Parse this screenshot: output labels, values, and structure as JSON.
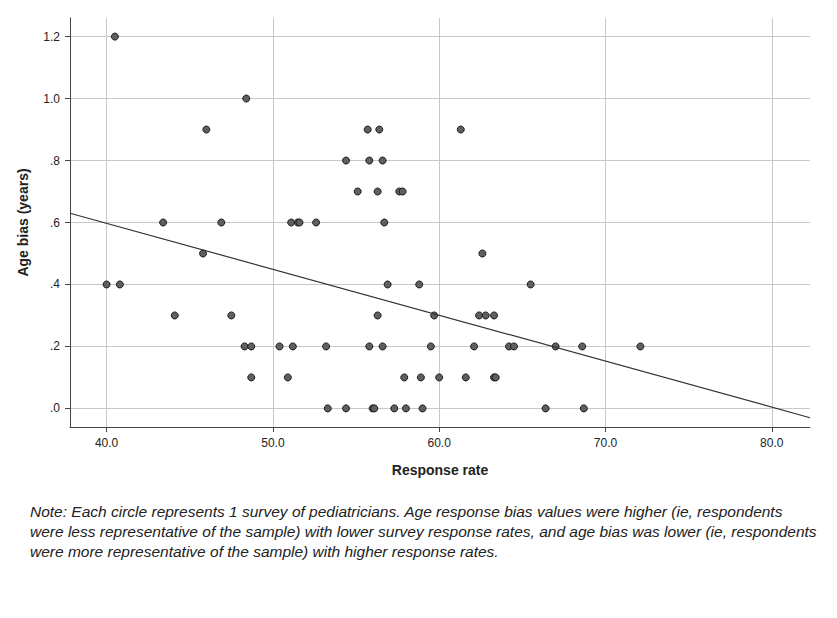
{
  "chart_data": {
    "type": "scatter",
    "x_label": "Response rate",
    "y_label": "Age bias (years)",
    "note": "Note: Each circle represents 1 survey of pediatricians. Age response bias values were higher (ie, respondents were less representative of the sample) with lower survey response rates, and age bias was lower (ie, respondents were more representative of the sample) with higher response rates.",
    "xlim": [
      37.8,
      82.3
    ],
    "ylim": [
      -0.06,
      1.26
    ],
    "xticks": [
      {
        "value": 40,
        "label": "40.0"
      },
      {
        "value": 50,
        "label": "50.0"
      },
      {
        "value": 60,
        "label": "60.0"
      },
      {
        "value": 70,
        "label": "70.0"
      },
      {
        "value": 80,
        "label": "80.0"
      }
    ],
    "yticks": [
      {
        "value": 0,
        "label": ".0"
      },
      {
        "value": 0.2,
        "label": ".2"
      },
      {
        "value": 0.4,
        "label": ".4"
      },
      {
        "value": 0.6,
        "label": ".6"
      },
      {
        "value": 0.8,
        "label": ".8"
      },
      {
        "value": 1,
        "label": "1.0"
      },
      1.2
    ],
    "grid": true,
    "series": [
      {
        "type": "scatter",
        "marker": "circle",
        "color": "#5f5f5f",
        "x": [
          40.0,
          40.5,
          40.8,
          43.4,
          44.1,
          45.8,
          46.0,
          46.9,
          47.5,
          48.3,
          48.4,
          48.7,
          48.7,
          50.4,
          50.9,
          51.1,
          51.2,
          51.5,
          51.6,
          52.6,
          53.2,
          53.3,
          54.4,
          54.4,
          55.1,
          55.7,
          55.8,
          55.8,
          56.0,
          56.1,
          56.3,
          56.3,
          56.4,
          56.6,
          56.6,
          56.7,
          56.9,
          57.3,
          57.6,
          57.8,
          57.9,
          58.0,
          58.8,
          58.9,
          59.0,
          59.5,
          59.7,
          60.0,
          61.3,
          61.6,
          62.1,
          62.4,
          62.6,
          62.8,
          63.3,
          63.3,
          63.4,
          64.2,
          64.5,
          65.5,
          66.4,
          67.0,
          68.6,
          68.7,
          72.1
        ],
        "values": [
          0.4,
          1.2,
          0.4,
          0.6,
          0.3,
          0.5,
          0.9,
          0.6,
          0.3,
          0.2,
          1.0,
          0.2,
          0.1,
          0.2,
          0.1,
          0.6,
          0.2,
          0.6,
          0.6,
          0.6,
          0.2,
          0.0,
          0.0,
          0.8,
          0.7,
          0.9,
          0.8,
          0.2,
          0.0,
          0.0,
          0.3,
          0.7,
          0.9,
          0.8,
          0.2,
          0.6,
          0.4,
          0.0,
          0.7,
          0.7,
          0.1,
          0.0,
          0.4,
          0.1,
          0.0,
          0.2,
          0.3,
          0.1,
          0.9,
          0.1,
          0.2,
          0.3,
          0.5,
          0.3,
          0.1,
          0.3,
          0.1,
          0.2,
          0.2,
          0.4,
          0.0,
          0.2,
          0.2,
          0.0,
          0.2
        ]
      },
      {
        "type": "line",
        "line_style": "solid",
        "color": "#333333",
        "x": [
          37.8,
          82.3
        ],
        "values": [
          0.63,
          -0.03
        ]
      }
    ]
  }
}
